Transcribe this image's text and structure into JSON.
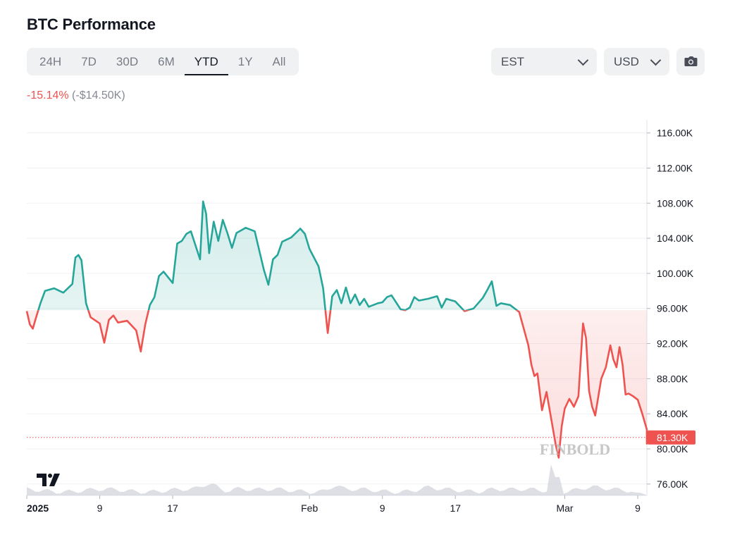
{
  "header": {
    "title": "BTC Performance"
  },
  "range_tabs": [
    {
      "label": "24H",
      "active": false
    },
    {
      "label": "7D",
      "active": false
    },
    {
      "label": "30D",
      "active": false
    },
    {
      "label": "6M",
      "active": false
    },
    {
      "label": "YTD",
      "active": true
    },
    {
      "label": "1Y",
      "active": false
    },
    {
      "label": "All",
      "active": false
    }
  ],
  "timezone_select": {
    "value": "EST"
  },
  "currency_select": {
    "value": "USD"
  },
  "camera_button": {
    "icon": "camera-icon"
  },
  "performance": {
    "percent": "-15.14%",
    "absolute": "(-$14.50K)"
  },
  "colors": {
    "up": "#26a69a",
    "down": "#ef5350",
    "grid": "#f0f1f3",
    "volume": "#d1d4dc"
  },
  "chart_data": {
    "type": "line",
    "title": "",
    "baseline": 95.8,
    "ylim": [
      74.7,
      117.5
    ],
    "y_ticks": [
      {
        "value": 116,
        "label": "116.00K"
      },
      {
        "value": 112,
        "label": "112.00K"
      },
      {
        "value": 108,
        "label": "108.00K"
      },
      {
        "value": 104,
        "label": "104.00K"
      },
      {
        "value": 100,
        "label": "100.00K"
      },
      {
        "value": 96,
        "label": "96.00K"
      },
      {
        "value": 92,
        "label": "92.00K"
      },
      {
        "value": 88,
        "label": "88.00K"
      },
      {
        "value": 84,
        "label": "84.00K"
      },
      {
        "value": 80,
        "label": "80.00K"
      },
      {
        "value": 76,
        "label": "76.00K"
      }
    ],
    "x_ticks": [
      {
        "date": "2025-01-01",
        "label": "2025",
        "bold": true
      },
      {
        "date": "2025-01-09",
        "label": "9",
        "bold": false
      },
      {
        "date": "2025-01-17",
        "label": "17",
        "bold": false
      },
      {
        "date": "2025-02-01",
        "label": "Feb",
        "bold": false
      },
      {
        "date": "2025-02-09",
        "label": "9",
        "bold": false
      },
      {
        "date": "2025-02-17",
        "label": "17",
        "bold": false
      },
      {
        "date": "2025-03-01",
        "label": "Mar",
        "bold": false
      },
      {
        "date": "2025-03-09",
        "label": "9",
        "bold": false
      }
    ],
    "x_range": [
      "2025-01-01",
      "2025-03-10"
    ],
    "current_value": 81.3,
    "current_label": "81.30K",
    "series": [
      {
        "unit": "thousand USD",
        "points": [
          [
            "2025-01-01",
            95.7
          ],
          [
            "2025-01-01",
            94.2
          ],
          [
            "2025-01-01",
            93.7
          ],
          [
            "2025-01-02",
            94.9
          ],
          [
            "2025-01-02",
            96.6
          ],
          [
            "2025-01-03",
            98.0
          ],
          [
            "2025-01-04",
            98.3
          ],
          [
            "2025-01-05",
            97.8
          ],
          [
            "2025-01-06",
            98.8
          ],
          [
            "2025-01-06",
            101.8
          ],
          [
            "2025-01-06",
            102.1
          ],
          [
            "2025-01-07",
            101.5
          ],
          [
            "2025-01-07",
            96.6
          ],
          [
            "2025-01-08",
            95.0
          ],
          [
            "2025-01-09",
            94.3
          ],
          [
            "2025-01-09",
            92.1
          ],
          [
            "2025-01-10",
            94.7
          ],
          [
            "2025-01-10",
            95.2
          ],
          [
            "2025-01-11",
            94.4
          ],
          [
            "2025-01-12",
            94.6
          ],
          [
            "2025-01-13",
            93.5
          ],
          [
            "2025-01-13",
            91.1
          ],
          [
            "2025-01-14",
            94.2
          ],
          [
            "2025-01-14",
            96.4
          ],
          [
            "2025-01-15",
            97.3
          ],
          [
            "2025-01-15",
            99.7
          ],
          [
            "2025-01-16",
            100.2
          ],
          [
            "2025-01-17",
            98.9
          ],
          [
            "2025-01-17",
            103.4
          ],
          [
            "2025-01-18",
            103.7
          ],
          [
            "2025-01-18",
            104.5
          ],
          [
            "2025-01-19",
            104.8
          ],
          [
            "2025-01-20",
            101.6
          ],
          [
            "2025-01-20",
            108.2
          ],
          [
            "2025-01-20",
            106.8
          ],
          [
            "2025-01-21",
            102.3
          ],
          [
            "2025-01-21",
            105.9
          ],
          [
            "2025-01-22",
            103.7
          ],
          [
            "2025-01-22",
            106.1
          ],
          [
            "2025-01-23",
            104.6
          ],
          [
            "2025-01-23",
            102.9
          ],
          [
            "2025-01-24",
            104.6
          ],
          [
            "2025-01-25",
            105.2
          ],
          [
            "2025-01-26",
            104.8
          ],
          [
            "2025-01-27",
            100.4
          ],
          [
            "2025-01-27",
            98.7
          ],
          [
            "2025-01-28",
            101.6
          ],
          [
            "2025-01-28",
            102.1
          ],
          [
            "2025-01-29",
            103.6
          ],
          [
            "2025-01-30",
            104.1
          ],
          [
            "2025-01-31",
            105.1
          ],
          [
            "2025-01-31",
            104.5
          ],
          [
            "2025-02-01",
            102.8
          ],
          [
            "2025-02-02",
            100.8
          ],
          [
            "2025-02-02",
            98.3
          ],
          [
            "2025-02-03",
            93.2
          ],
          [
            "2025-02-03",
            97.4
          ],
          [
            "2025-02-04",
            98.1
          ],
          [
            "2025-02-04",
            96.6
          ],
          [
            "2025-02-05",
            98.4
          ],
          [
            "2025-02-05",
            96.6
          ],
          [
            "2025-02-06",
            97.6
          ],
          [
            "2025-02-06",
            96.4
          ],
          [
            "2025-02-07",
            97.1
          ],
          [
            "2025-02-07",
            96.2
          ],
          [
            "2025-02-08",
            96.4
          ],
          [
            "2025-02-08",
            96.6
          ],
          [
            "2025-02-09",
            96.7
          ],
          [
            "2025-02-09",
            97.3
          ],
          [
            "2025-02-10",
            97.5
          ],
          [
            "2025-02-11",
            95.9
          ],
          [
            "2025-02-11",
            95.8
          ],
          [
            "2025-02-12",
            96.1
          ],
          [
            "2025-02-12",
            97.3
          ],
          [
            "2025-02-13",
            96.9
          ],
          [
            "2025-02-14",
            97.1
          ],
          [
            "2025-02-15",
            97.4
          ],
          [
            "2025-02-15",
            96.1
          ],
          [
            "2025-02-16",
            97.1
          ],
          [
            "2025-02-17",
            96.8
          ],
          [
            "2025-02-18",
            95.7
          ],
          [
            "2025-02-19",
            96.0
          ],
          [
            "2025-02-20",
            97.2
          ],
          [
            "2025-02-20",
            98.1
          ],
          [
            "2025-02-21",
            99.1
          ],
          [
            "2025-02-21",
            96.3
          ],
          [
            "2025-02-22",
            96.6
          ],
          [
            "2025-02-23",
            96.4
          ],
          [
            "2025-02-24",
            95.6
          ],
          [
            "2025-02-25",
            91.8
          ],
          [
            "2025-02-25",
            89.6
          ],
          [
            "2025-02-25",
            88.3
          ],
          [
            "2025-02-26",
            88.6
          ],
          [
            "2025-02-26",
            84.4
          ],
          [
            "2025-02-27",
            86.5
          ],
          [
            "2025-02-28",
            80.5
          ],
          [
            "2025-02-28",
            79.0
          ],
          [
            "2025-02-28",
            82.6
          ],
          [
            "2025-03-01",
            84.6
          ],
          [
            "2025-03-01",
            85.7
          ],
          [
            "2025-03-02",
            84.8
          ],
          [
            "2025-03-02",
            86.0
          ],
          [
            "2025-03-03",
            94.3
          ],
          [
            "2025-03-03",
            92.6
          ],
          [
            "2025-03-03",
            86.6
          ],
          [
            "2025-03-04",
            84.8
          ],
          [
            "2025-03-04",
            83.8
          ],
          [
            "2025-03-04",
            85.9
          ],
          [
            "2025-03-05",
            88.0
          ],
          [
            "2025-03-05",
            89.3
          ],
          [
            "2025-03-06",
            91.8
          ],
          [
            "2025-03-06",
            90.2
          ],
          [
            "2025-03-06",
            89.3
          ],
          [
            "2025-03-07",
            91.6
          ],
          [
            "2025-03-07",
            89.6
          ],
          [
            "2025-03-07",
            86.2
          ],
          [
            "2025-03-08",
            86.3
          ],
          [
            "2025-03-08",
            86.0
          ],
          [
            "2025-03-09",
            85.6
          ],
          [
            "2025-03-09",
            84.0
          ],
          [
            "2025-03-10",
            82.2
          ],
          [
            "2025-03-10",
            80.6
          ],
          [
            "2025-03-10",
            81.3
          ]
        ]
      }
    ]
  },
  "branding": {
    "watermark": "FINBOLD",
    "logo": "tradingview-logo"
  }
}
